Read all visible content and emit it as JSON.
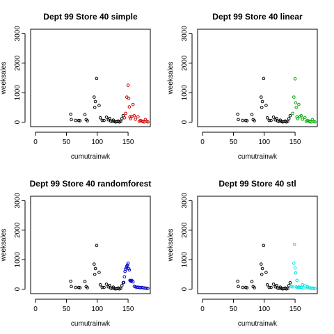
{
  "chart_data": [
    {
      "type": "scatter",
      "title": "Dept 99 Store 40 simple",
      "xlabel": "cumutrainwk",
      "ylabel": "weeksales",
      "xlim": [
        -8,
        186
      ],
      "ylim": [
        -150,
        3150
      ],
      "xticks": [
        "0",
        "50",
        "100",
        "150"
      ],
      "yticks": [
        "0",
        "1000",
        "2000",
        "3000"
      ],
      "grid": false,
      "legend": "none",
      "series": [
        {
          "color": "#000000",
          "x": [
            57,
            58,
            65,
            70,
            72,
            80,
            82,
            84,
            95,
            96,
            97,
            99,
            103,
            105,
            108,
            111,
            115,
            118,
            120,
            122,
            124,
            126,
            128,
            130,
            132,
            134,
            136,
            138,
            140,
            142
          ],
          "y": [
            270,
            90,
            60,
            60,
            50,
            260,
            90,
            50,
            850,
            500,
            700,
            1480,
            570,
            150,
            60,
            60,
            170,
            80,
            130,
            40,
            30,
            70,
            20,
            10,
            20,
            40,
            10,
            30,
            120,
            220
          ]
        },
        {
          "color": "#cc0000",
          "x": [
            144,
            146,
            148,
            150,
            151,
            152,
            153,
            154,
            156,
            158,
            160,
            162,
            166,
            168,
            170,
            172,
            174,
            176,
            178,
            180,
            182
          ],
          "y": [
            150,
            300,
            850,
            1250,
            810,
            520,
            180,
            120,
            200,
            600,
            220,
            100,
            180,
            30,
            60,
            40,
            20,
            10,
            90,
            30,
            10
          ]
        }
      ]
    },
    {
      "type": "scatter",
      "title": "Dept 99 Store 40 linear",
      "xlabel": "cumutrainwk",
      "ylabel": "weeksales",
      "xlim": [
        -8,
        186
      ],
      "ylim": [
        -150,
        3150
      ],
      "xticks": [
        "0",
        "50",
        "100",
        "150"
      ],
      "yticks": [
        "0",
        "1000",
        "2000",
        "3000"
      ],
      "grid": false,
      "legend": "none",
      "series": [
        {
          "color": "#000000",
          "x": [
            57,
            58,
            65,
            70,
            72,
            80,
            82,
            84,
            95,
            96,
            97,
            99,
            103,
            105,
            108,
            111,
            115,
            118,
            120,
            122,
            124,
            126,
            128,
            130,
            132,
            134,
            136,
            138,
            140,
            142
          ],
          "y": [
            270,
            90,
            60,
            60,
            50,
            260,
            90,
            50,
            850,
            500,
            700,
            1480,
            570,
            150,
            60,
            60,
            170,
            80,
            130,
            40,
            30,
            70,
            20,
            10,
            20,
            40,
            10,
            30,
            120,
            220
          ]
        },
        {
          "color": "#00aa00",
          "x": [
            146,
            148,
            150,
            151,
            152,
            153,
            154,
            156,
            158,
            160,
            162,
            166,
            168,
            170,
            172,
            174,
            176,
            178,
            180,
            182
          ],
          "y": [
            300,
            850,
            1470,
            660,
            500,
            180,
            120,
            600,
            200,
            220,
            100,
            160,
            30,
            60,
            40,
            20,
            10,
            90,
            30,
            10
          ]
        }
      ]
    },
    {
      "type": "scatter",
      "title": "Dept 99 Store 40 randomforest",
      "xlabel": "cumutrainwk",
      "ylabel": "weeksales",
      "xlim": [
        -8,
        186
      ],
      "ylim": [
        -150,
        3150
      ],
      "xticks": [
        "0",
        "50",
        "100",
        "150"
      ],
      "yticks": [
        "0",
        "1000",
        "2000",
        "3000"
      ],
      "grid": false,
      "legend": "none",
      "series": [
        {
          "color": "#000000",
          "x": [
            57,
            58,
            65,
            70,
            72,
            80,
            82,
            84,
            95,
            96,
            97,
            99,
            103,
            105,
            108,
            111,
            115,
            118,
            120,
            122,
            124,
            126,
            128,
            130,
            132,
            134,
            136,
            138,
            140,
            142
          ],
          "y": [
            270,
            90,
            60,
            60,
            50,
            260,
            90,
            50,
            850,
            500,
            700,
            1480,
            570,
            150,
            60,
            60,
            170,
            80,
            130,
            40,
            30,
            70,
            20,
            10,
            20,
            40,
            10,
            30,
            120,
            220
          ]
        },
        {
          "color": "#0000cc",
          "x": [
            143,
            144,
            145,
            146,
            147,
            148,
            149,
            150,
            151,
            152,
            153,
            154,
            155,
            156,
            158,
            160,
            162,
            164,
            166,
            168,
            170,
            172,
            174,
            176,
            178,
            180,
            182
          ],
          "y": [
            230,
            420,
            600,
            680,
            720,
            780,
            820,
            880,
            700,
            650,
            300,
            280,
            270,
            300,
            250,
            100,
            80,
            60,
            70,
            60,
            50,
            60,
            50,
            40,
            40,
            30,
            30
          ]
        }
      ]
    },
    {
      "type": "scatter",
      "title": "Dept 99 Store 40 stl",
      "xlabel": "cumutrainwk",
      "ylabel": "weeksales",
      "xlim": [
        -8,
        186
      ],
      "ylim": [
        -150,
        3150
      ],
      "xticks": [
        "0",
        "50",
        "100",
        "150"
      ],
      "yticks": [
        "0",
        "1000",
        "2000",
        "3000"
      ],
      "grid": false,
      "legend": "none",
      "series": [
        {
          "color": "#000000",
          "x": [
            57,
            58,
            65,
            70,
            72,
            80,
            82,
            84,
            95,
            96,
            97,
            99,
            103,
            105,
            108,
            111,
            115,
            118,
            120,
            122,
            124,
            126,
            128,
            130,
            132,
            134,
            136,
            138,
            140,
            142
          ],
          "y": [
            270,
            90,
            60,
            60,
            50,
            260,
            90,
            50,
            850,
            500,
            700,
            1480,
            570,
            150,
            60,
            60,
            170,
            80,
            130,
            40,
            30,
            70,
            20,
            10,
            20,
            40,
            10,
            30,
            120,
            220
          ]
        },
        {
          "color": "#00e5e5",
          "x": [
            144,
            146,
            148,
            149,
            150,
            151,
            152,
            153,
            154,
            155,
            156,
            158,
            160,
            162,
            164,
            166,
            168,
            170,
            172,
            174,
            176,
            178,
            180,
            182
          ],
          "y": [
            100,
            80,
            880,
            1520,
            720,
            550,
            80,
            300,
            60,
            50,
            80,
            60,
            60,
            150,
            40,
            120,
            50,
            80,
            40,
            50,
            30,
            40,
            30,
            20
          ]
        }
      ]
    }
  ]
}
